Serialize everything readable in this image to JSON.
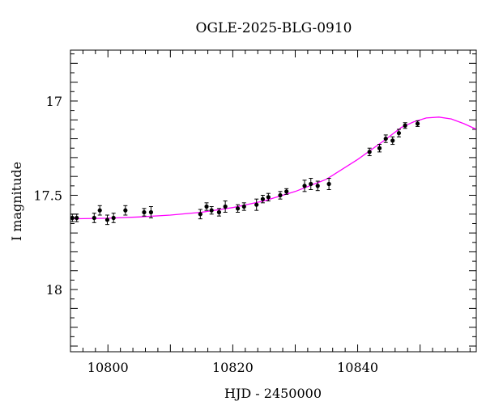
{
  "chart_data": {
    "type": "scatter",
    "title": "OGLE-2025-BLG-0910",
    "xlabel": "HJD - 2450000",
    "ylabel": "I magnitude",
    "xlim": [
      10794,
      10859
    ],
    "ylim": [
      18.33,
      16.73
    ],
    "y_inverted": true,
    "grid": false,
    "x_ticks": [
      {
        "value": 10800,
        "label": "10800"
      },
      {
        "value": 10820,
        "label": "10820"
      },
      {
        "value": 10840,
        "label": "10840"
      }
    ],
    "y_ticks": [
      {
        "value": 17.0,
        "label": "17"
      },
      {
        "value": 17.5,
        "label": "17.5"
      },
      {
        "value": 18.0,
        "label": "18"
      }
    ],
    "series": [
      {
        "kind": "points",
        "color": "#000000",
        "points": [
          {
            "x": 10794.3,
            "y": 17.62,
            "err": 0.02
          },
          {
            "x": 10795.0,
            "y": 17.62,
            "err": 0.02
          },
          {
            "x": 10797.8,
            "y": 17.62,
            "err": 0.025
          },
          {
            "x": 10798.7,
            "y": 17.58,
            "err": 0.025
          },
          {
            "x": 10799.9,
            "y": 17.63,
            "err": 0.025
          },
          {
            "x": 10800.9,
            "y": 17.62,
            "err": 0.025
          },
          {
            "x": 10802.8,
            "y": 17.58,
            "err": 0.025
          },
          {
            "x": 10805.8,
            "y": 17.59,
            "err": 0.02
          },
          {
            "x": 10806.9,
            "y": 17.59,
            "err": 0.03
          },
          {
            "x": 10814.8,
            "y": 17.6,
            "err": 0.025
          },
          {
            "x": 10815.8,
            "y": 17.56,
            "err": 0.02
          },
          {
            "x": 10816.6,
            "y": 17.58,
            "err": 0.02
          },
          {
            "x": 10817.8,
            "y": 17.59,
            "err": 0.02
          },
          {
            "x": 10818.8,
            "y": 17.56,
            "err": 0.03
          },
          {
            "x": 10820.8,
            "y": 17.57,
            "err": 0.02
          },
          {
            "x": 10821.8,
            "y": 17.56,
            "err": 0.02
          },
          {
            "x": 10823.8,
            "y": 17.55,
            "err": 0.03
          },
          {
            "x": 10824.8,
            "y": 17.52,
            "err": 0.02
          },
          {
            "x": 10825.7,
            "y": 17.51,
            "err": 0.02
          },
          {
            "x": 10827.6,
            "y": 17.5,
            "err": 0.02
          },
          {
            "x": 10828.6,
            "y": 17.48,
            "err": 0.015
          },
          {
            "x": 10831.5,
            "y": 17.45,
            "err": 0.03
          },
          {
            "x": 10832.5,
            "y": 17.44,
            "err": 0.03
          },
          {
            "x": 10833.6,
            "y": 17.45,
            "err": 0.025
          },
          {
            "x": 10835.4,
            "y": 17.44,
            "err": 0.03
          },
          {
            "x": 10841.9,
            "y": 17.27,
            "err": 0.02
          },
          {
            "x": 10843.5,
            "y": 17.25,
            "err": 0.02
          },
          {
            "x": 10844.5,
            "y": 17.2,
            "err": 0.02
          },
          {
            "x": 10845.6,
            "y": 17.21,
            "err": 0.02
          },
          {
            "x": 10846.6,
            "y": 17.17,
            "err": 0.02
          },
          {
            "x": 10847.6,
            "y": 17.13,
            "err": 0.015
          },
          {
            "x": 10849.6,
            "y": 17.12,
            "err": 0.015
          }
        ]
      },
      {
        "kind": "model",
        "color": "#ff00ff",
        "points": [
          {
            "x": 10794,
            "y": 17.625
          },
          {
            "x": 10800,
            "y": 17.622
          },
          {
            "x": 10805,
            "y": 17.615
          },
          {
            "x": 10810,
            "y": 17.605
          },
          {
            "x": 10815,
            "y": 17.59
          },
          {
            "x": 10820,
            "y": 17.565
          },
          {
            "x": 10825,
            "y": 17.53
          },
          {
            "x": 10830,
            "y": 17.48
          },
          {
            "x": 10835,
            "y": 17.415
          },
          {
            "x": 10840,
            "y": 17.31
          },
          {
            "x": 10844,
            "y": 17.215
          },
          {
            "x": 10847,
            "y": 17.14
          },
          {
            "x": 10849,
            "y": 17.11
          },
          {
            "x": 10851,
            "y": 17.09
          },
          {
            "x": 10853,
            "y": 17.085
          },
          {
            "x": 10855,
            "y": 17.095
          },
          {
            "x": 10857,
            "y": 17.12
          },
          {
            "x": 10859,
            "y": 17.15
          }
        ]
      }
    ]
  }
}
